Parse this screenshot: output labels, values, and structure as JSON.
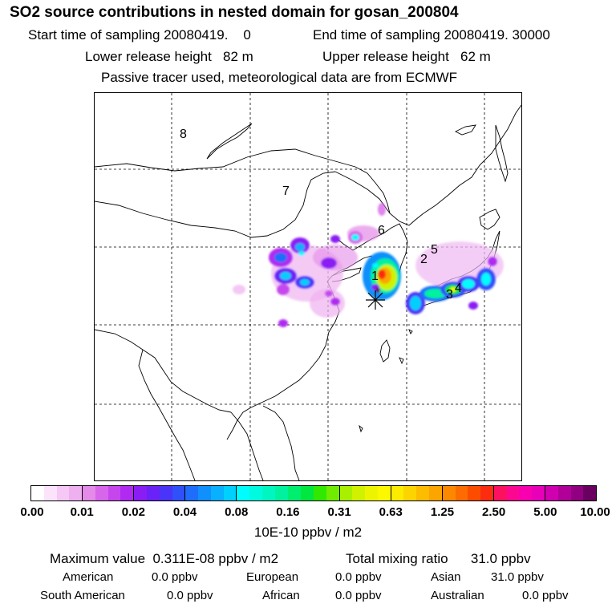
{
  "header": {
    "title": "SO2 source contributions in nested domain for gosan_200804",
    "start_label": "Start time of sampling 20080419.    0",
    "end_label": "End time of sampling 20080419. 30000",
    "lower_label": "Lower release height   82 m",
    "upper_label": "Upper release height   62 m",
    "tracer_note": "Passive tracer used, meteorological data are from ECMWF"
  },
  "map": {
    "region_labels": [
      "8",
      "7",
      "6",
      "5",
      "2",
      "1",
      "3",
      "4"
    ],
    "receptor_marker": "asterisk-icon"
  },
  "colorbar": {
    "ticks": [
      "0.00",
      "0.01",
      "0.02",
      "0.04",
      "0.08",
      "0.16",
      "0.31",
      "0.63",
      "1.25",
      "2.50",
      "5.00",
      "10.00"
    ],
    "unit": "10E-10 ppbv / m2",
    "segments": [
      [
        "#ffffff",
        "#fbe4fb",
        "#f5c8f5",
        "#efb0ef"
      ],
      [
        "#e48ae8",
        "#d866ea",
        "#c646ee",
        "#b02af2"
      ],
      [
        "#8a1cf4",
        "#6a22f6",
        "#4a34f8",
        "#3050fa"
      ],
      [
        "#1e6efb",
        "#1090fc",
        "#08b0fd",
        "#00d0fe"
      ],
      [
        "#00fcfc",
        "#00fae0",
        "#00f6c0",
        "#00f29e"
      ],
      [
        "#00ee70",
        "#00e840",
        "#30e800",
        "#70ec00"
      ],
      [
        "#a8f000",
        "#d0f200",
        "#eef400",
        "#fcf800"
      ],
      [
        "#fcec00",
        "#fcd400",
        "#fcbc00",
        "#fca400"
      ],
      [
        "#fc8800",
        "#fc6c00",
        "#fc4c00",
        "#fc2c10"
      ],
      [
        "#fc1060",
        "#fc0890",
        "#f800b0",
        "#e800b8"
      ],
      [
        "#d000b0",
        "#b00098",
        "#900080",
        "#6a0060"
      ]
    ]
  },
  "stats": {
    "max_label": "Maximum value  0.311E-08 ppbv / m2",
    "total_label": "Total mixing ratio      31.0 ppbv",
    "american": "American",
    "american_val": "0.0 ppbv",
    "european": "European",
    "european_val": "0.0 ppbv",
    "asian": "Asian",
    "asian_val": "31.0 ppbv",
    "south_american": "South American",
    "south_american_val": "0.0 ppbv",
    "african": "African",
    "african_val": "0.0 ppbv",
    "australian": "Australian",
    "australian_val": "0.0 ppbv"
  }
}
